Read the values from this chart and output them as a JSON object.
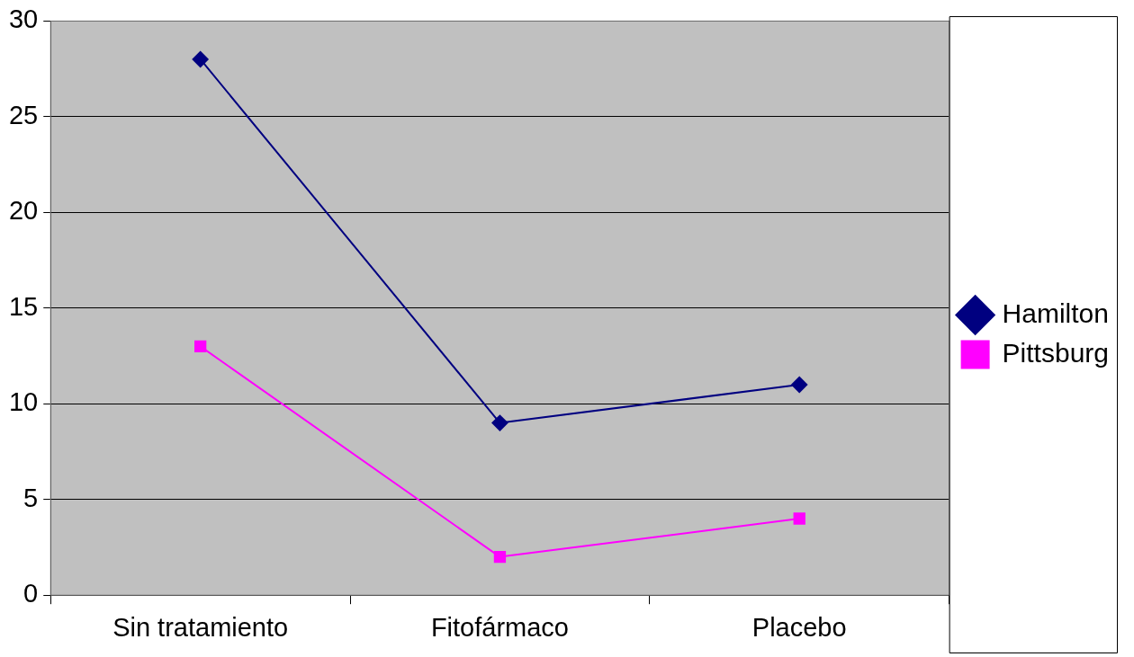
{
  "chart_data": {
    "type": "line",
    "categories": [
      "Sin tratamiento",
      "Fitofármaco",
      "Placebo"
    ],
    "series": [
      {
        "name": "Hamilton",
        "color": "#000080",
        "values": [
          28,
          9,
          11
        ],
        "marker": "diamond"
      },
      {
        "name": "Pittsburg",
        "color": "#ff00ff",
        "values": [
          13,
          2,
          4
        ],
        "marker": "square"
      }
    ],
    "ylim": [
      0,
      30
    ],
    "yticks": [
      0,
      5,
      10,
      15,
      20,
      25,
      30
    ],
    "grid": "y",
    "legend": "right",
    "line_style": "solid"
  }
}
